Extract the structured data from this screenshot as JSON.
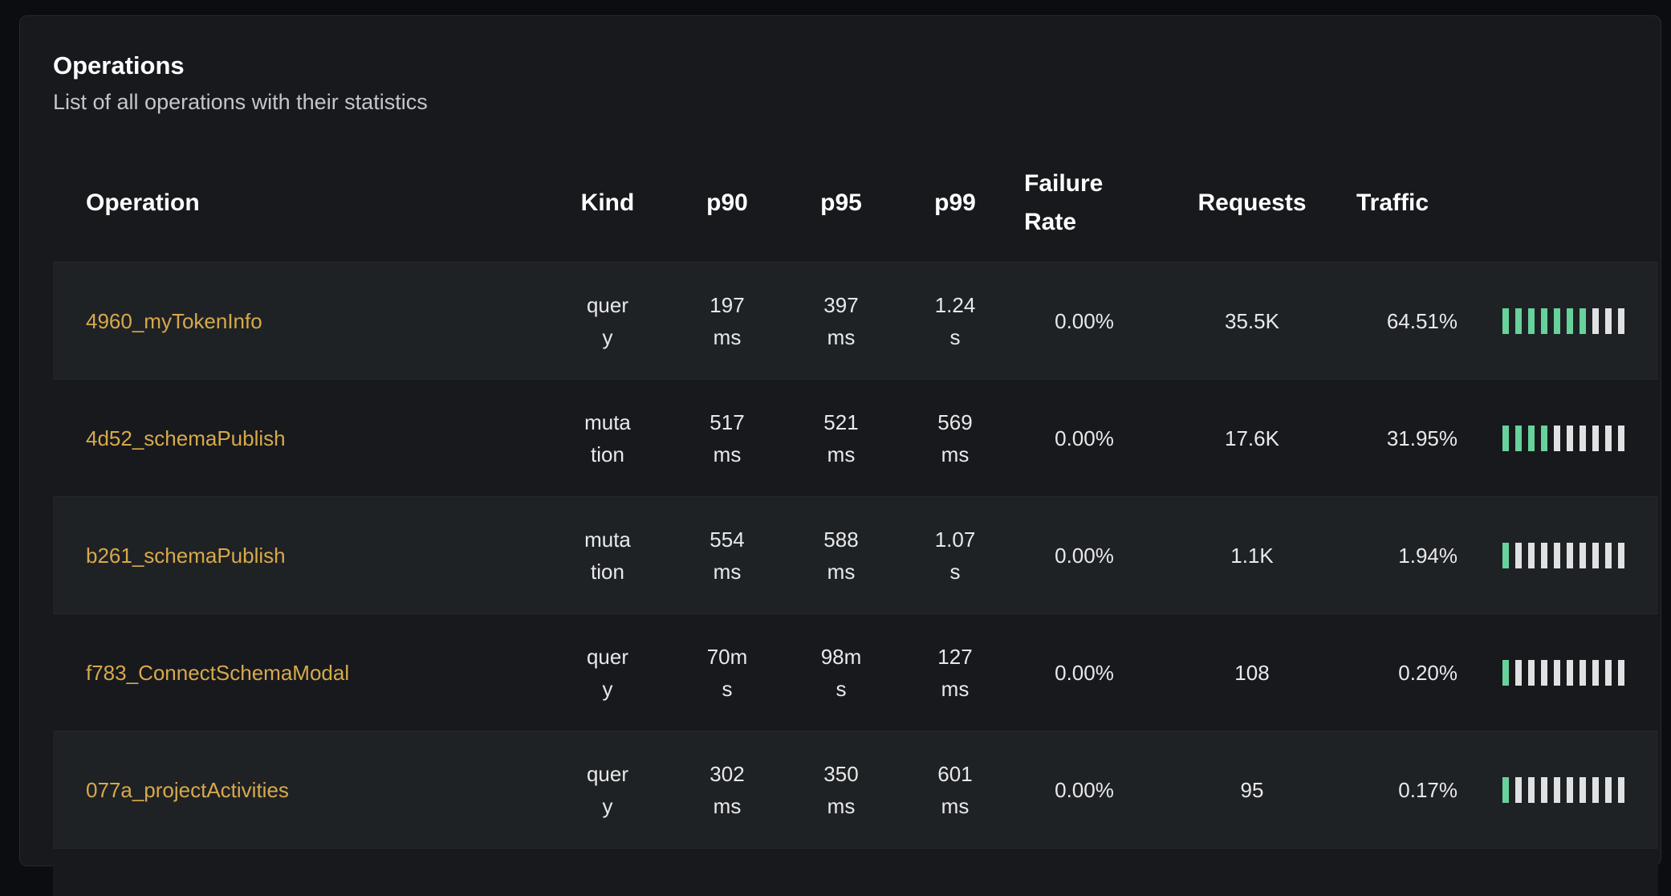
{
  "panel": {
    "title": "Operations",
    "subtitle": "List of all operations with their statistics"
  },
  "colors": {
    "operation_link": "#d7a94b",
    "traffic_bar_filled": "#67d29b",
    "traffic_bar_empty": "#e0e1e3"
  },
  "columns": {
    "operation": "Operation",
    "kind": "Kind",
    "p90": "p90",
    "p95": "p95",
    "p99": "p99",
    "failure_rate": "Failure Rate",
    "requests": "Requests",
    "traffic": "Traffic"
  },
  "rows": [
    {
      "operation": "4960_myTokenInfo",
      "kind": "query",
      "p90": "197 ms",
      "p95": "397 ms",
      "p99": "1.24 s",
      "failure_rate": "0.00%",
      "requests": "35.5K",
      "traffic": "64.51%",
      "bars_filled": 7
    },
    {
      "operation": "4d52_schemaPublish",
      "kind": "mutation",
      "p90": "517 ms",
      "p95": "521 ms",
      "p99": "569 ms",
      "failure_rate": "0.00%",
      "requests": "17.6K",
      "traffic": "31.95%",
      "bars_filled": 4
    },
    {
      "operation": "b261_schemaPublish",
      "kind": "mutation",
      "p90": "554 ms",
      "p95": "588 ms",
      "p99": "1.07 s",
      "failure_rate": "0.00%",
      "requests": "1.1K",
      "traffic": "1.94%",
      "bars_filled": 1
    },
    {
      "operation": "f783_ConnectSchemaModal",
      "kind": "query",
      "p90": "70ms",
      "p95": "98ms",
      "p99": "127 ms",
      "failure_rate": "0.00%",
      "requests": "108",
      "traffic": "0.20%",
      "bars_filled": 1
    },
    {
      "operation": "077a_projectActivities",
      "kind": "query",
      "p90": "302 ms",
      "p95": "350 ms",
      "p99": "601 ms",
      "failure_rate": "0.00%",
      "requests": "95",
      "traffic": "0.17%",
      "bars_filled": 1
    }
  ]
}
